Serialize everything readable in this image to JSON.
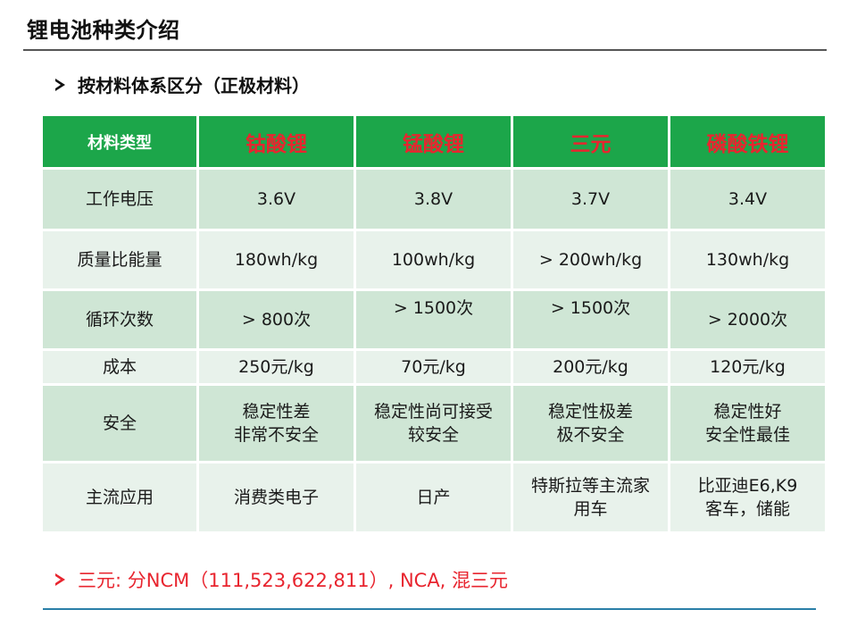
{
  "title": "锂电池种类介绍",
  "subtitle": "按材料体系区分（正极材料）",
  "table": {
    "header": [
      "材料类型",
      "钴酸锂",
      "锰酸锂",
      "三元",
      "磷酸铁锂"
    ],
    "rows": [
      {
        "label": "工作电压",
        "cells": [
          "3.6V",
          "3.8V",
          "3.7V",
          "3.4V"
        ]
      },
      {
        "label": "质量比能量",
        "cells": [
          "180wh/kg",
          "100wh/kg",
          "> 200wh/kg",
          "130wh/kg"
        ]
      },
      {
        "label": "循环次数",
        "cells": [
          "> 800次",
          "> 1500次",
          "> 1500次",
          "> 2000次"
        ]
      },
      {
        "label": "成本",
        "cells": [
          "250元/kg",
          "70元/kg",
          "200元/kg",
          "120元/kg"
        ]
      },
      {
        "label": "安全",
        "cells": [
          [
            "稳定性差",
            "非常不安全"
          ],
          [
            "稳定性尚可接受",
            "较安全"
          ],
          [
            "稳定性极差",
            "极不安全"
          ],
          [
            "稳定性好",
            "安全性最佳"
          ]
        ]
      },
      {
        "label": "主流应用",
        "cells": [
          [
            "消费类电子"
          ],
          [
            "日产"
          ],
          [
            "特斯拉等主流家",
            "用车"
          ],
          [
            "比亚迪E6,K9",
            "客车，储能"
          ]
        ]
      }
    ]
  },
  "note": "三元: 分NCM（111,523,622,811）, NCA, 混三元",
  "colors": {
    "header_bg": "#1ca64a",
    "header_text": "#e8252f",
    "row_dark": "#cfe6d5",
    "row_light": "#e8f2eb",
    "note_text": "#e8252f",
    "bottom_rule": "#2a7fa8"
  }
}
